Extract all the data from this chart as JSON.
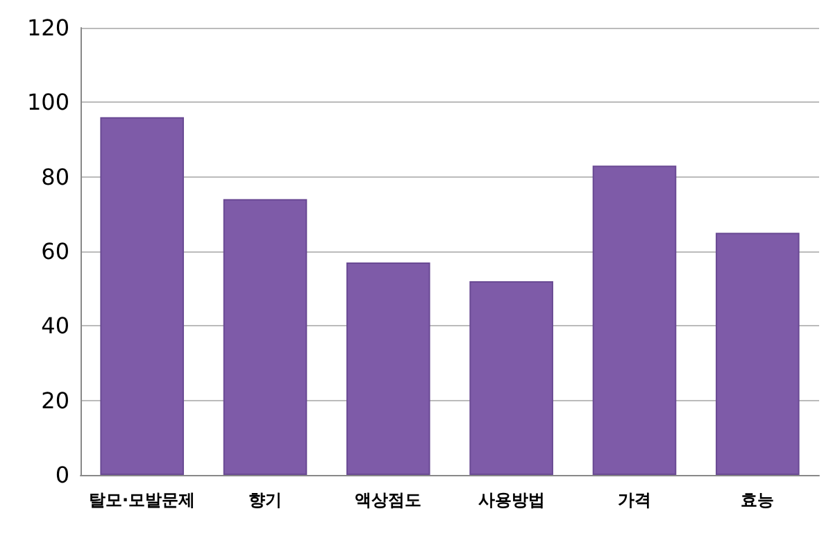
{
  "chart_data": {
    "type": "bar",
    "categories": [
      "탈모·모발문제",
      "향기",
      "액상점도",
      "사용방법",
      "가격",
      "효능"
    ],
    "values": [
      96,
      74,
      57,
      52,
      83,
      65
    ],
    "color": "#7e5ba8",
    "ylim": [
      0,
      120
    ],
    "yticks": [
      0,
      20,
      40,
      60,
      80,
      100,
      120
    ],
    "grid": "y"
  }
}
